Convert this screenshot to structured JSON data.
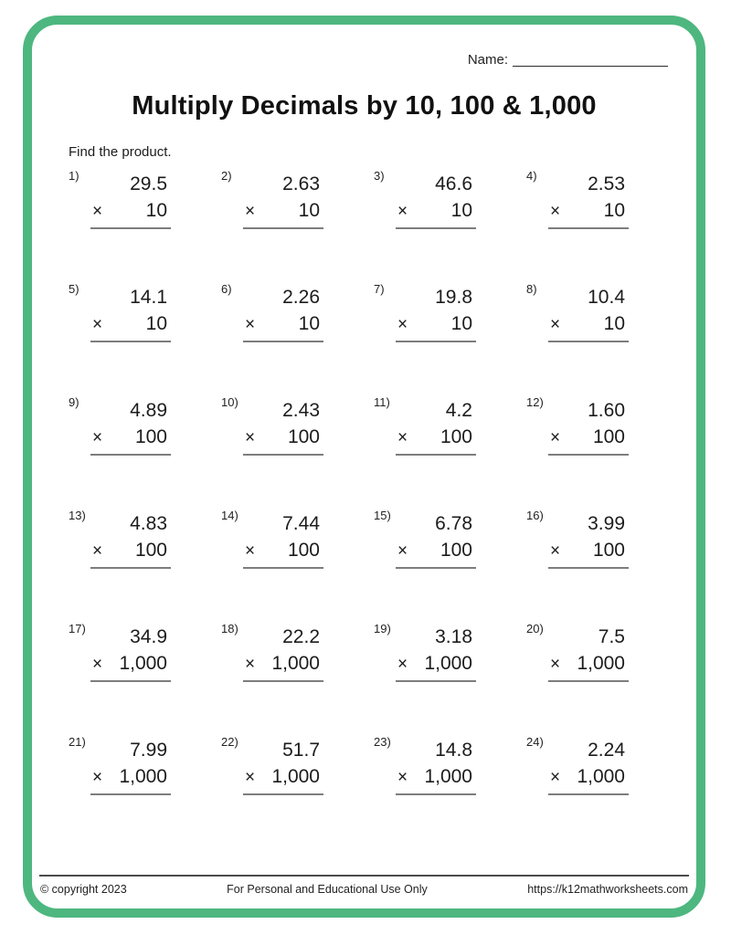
{
  "worksheet": {
    "name_label": "Name:",
    "title": "Multiply Decimals by 10, 100 & 1,000",
    "instruction": "Find the product.",
    "multiply_sign": "×"
  },
  "problems": [
    {
      "number": "1)",
      "multiplicand": "29.5",
      "multiplier": "10"
    },
    {
      "number": "2)",
      "multiplicand": "2.63",
      "multiplier": "10"
    },
    {
      "number": "3)",
      "multiplicand": "46.6",
      "multiplier": "10"
    },
    {
      "number": "4)",
      "multiplicand": "2.53",
      "multiplier": "10"
    },
    {
      "number": "5)",
      "multiplicand": "14.1",
      "multiplier": "10"
    },
    {
      "number": "6)",
      "multiplicand": "2.26",
      "multiplier": "10"
    },
    {
      "number": "7)",
      "multiplicand": "19.8",
      "multiplier": "10"
    },
    {
      "number": "8)",
      "multiplicand": "10.4",
      "multiplier": "10"
    },
    {
      "number": "9)",
      "multiplicand": "4.89",
      "multiplier": "100"
    },
    {
      "number": "10)",
      "multiplicand": "2.43",
      "multiplier": "100"
    },
    {
      "number": "11)",
      "multiplicand": "4.2",
      "multiplier": "100"
    },
    {
      "number": "12)",
      "multiplicand": "1.60",
      "multiplier": "100"
    },
    {
      "number": "13)",
      "multiplicand": "4.83",
      "multiplier": "100"
    },
    {
      "number": "14)",
      "multiplicand": "7.44",
      "multiplier": "100"
    },
    {
      "number": "15)",
      "multiplicand": "6.78",
      "multiplier": "100"
    },
    {
      "number": "16)",
      "multiplicand": "3.99",
      "multiplier": "100"
    },
    {
      "number": "17)",
      "multiplicand": "34.9",
      "multiplier": "1,000"
    },
    {
      "number": "18)",
      "multiplicand": "22.2",
      "multiplier": "1,000"
    },
    {
      "number": "19)",
      "multiplicand": "3.18",
      "multiplier": "1,000"
    },
    {
      "number": "20)",
      "multiplicand": "7.5",
      "multiplier": "1,000"
    },
    {
      "number": "21)",
      "multiplicand": "7.99",
      "multiplier": "1,000"
    },
    {
      "number": "22)",
      "multiplicand": "51.7",
      "multiplier": "1,000"
    },
    {
      "number": "23)",
      "multiplicand": "14.8",
      "multiplier": "1,000"
    },
    {
      "number": "24)",
      "multiplicand": "2.24",
      "multiplier": "1,000"
    }
  ],
  "footer": {
    "copyright": "© copyright 2023",
    "usage": "For Personal and Educational Use Only",
    "url": "https://k12mathworksheets.com"
  },
  "colors": {
    "border_green": "#4db77f",
    "rule_gray": "#7d7d7d",
    "footer_line": "#4a4a4a"
  }
}
